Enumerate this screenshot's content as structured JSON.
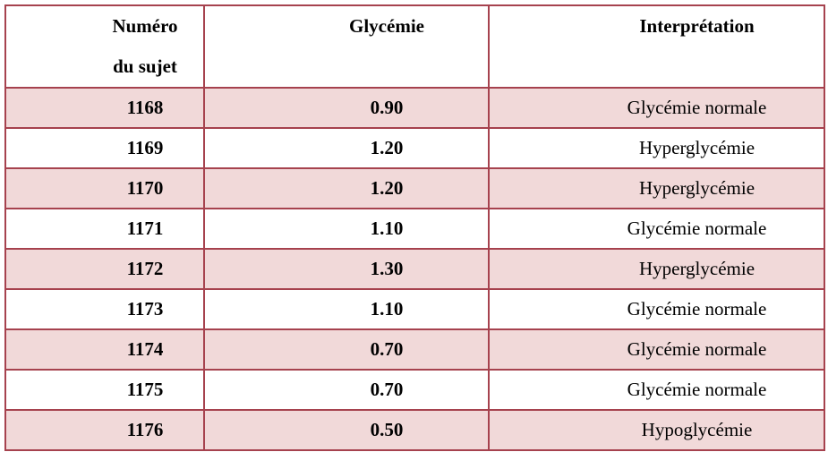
{
  "table": {
    "header": [
      "Numéro du sujet",
      "Glycémie",
      "Interprétation"
    ],
    "rows": [
      [
        "1168",
        "0.90",
        "Glycémie normale"
      ],
      [
        "1169",
        "1.20",
        "Hyperglycémie"
      ],
      [
        "1170",
        "1.20",
        "Hyperglycémie"
      ],
      [
        "1171",
        "1.10",
        "Glycémie normale"
      ],
      [
        "1172",
        "1.30",
        "Hyperglycémie"
      ],
      [
        "1173",
        "1.10",
        "Glycémie normale"
      ],
      [
        "1174",
        "0.70",
        "Glycémie normale"
      ],
      [
        "1175",
        "0.70",
        "Glycémie normale"
      ],
      [
        "1176",
        "0.50",
        "Hypoglycémie"
      ]
    ]
  }
}
